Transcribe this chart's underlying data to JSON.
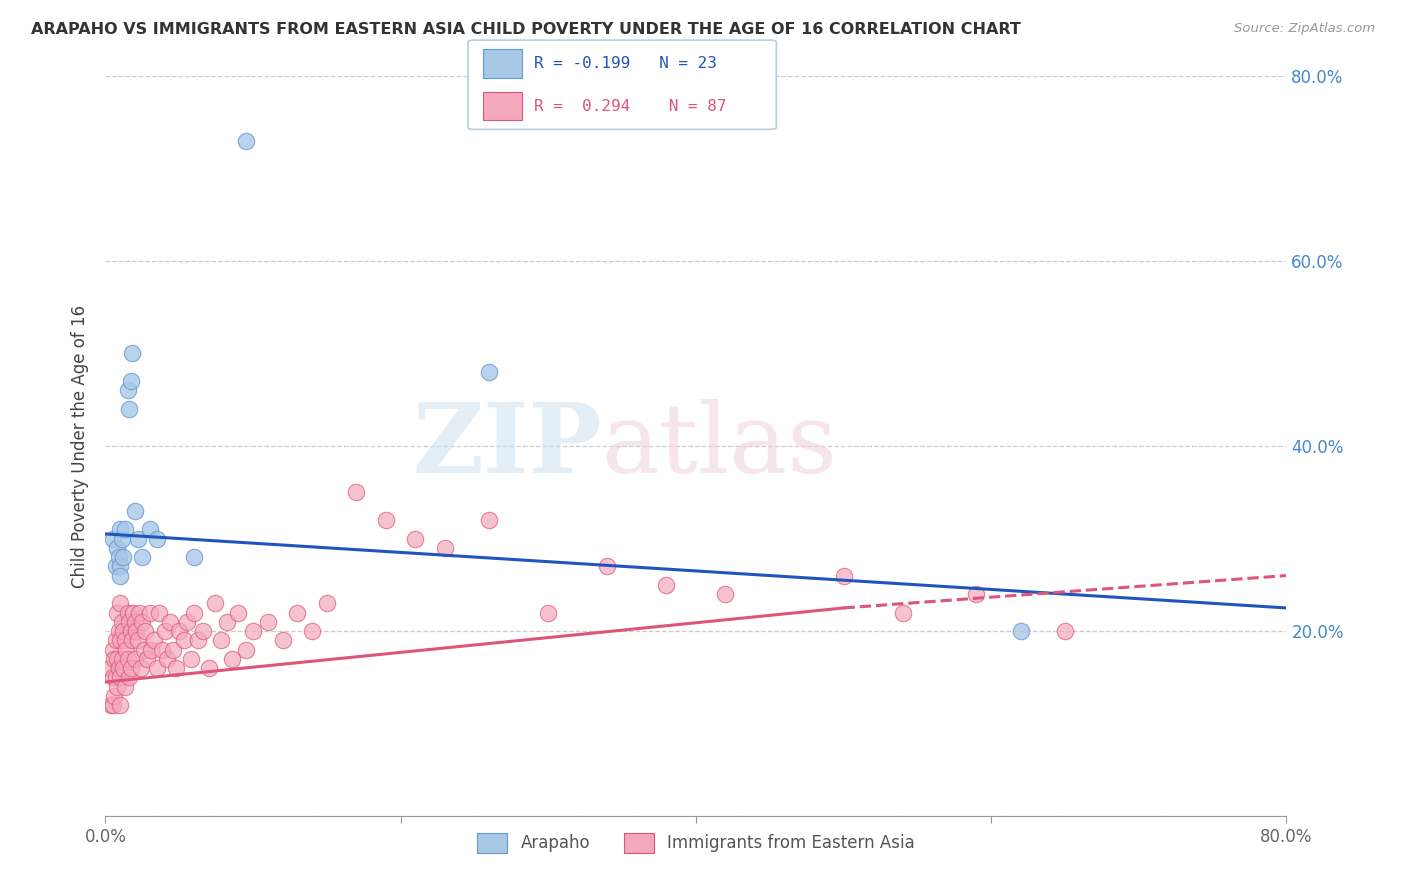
{
  "title": "ARAPAHO VS IMMIGRANTS FROM EASTERN ASIA CHILD POVERTY UNDER THE AGE OF 16 CORRELATION CHART",
  "source": "Source: ZipAtlas.com",
  "ylabel": "Child Poverty Under the Age of 16",
  "xlim": [
    0.0,
    0.8
  ],
  "ylim": [
    0.0,
    0.8
  ],
  "arapaho_color": "#a8c8e8",
  "eastern_asia_color": "#f4a8bc",
  "trendline_blue": "#2255bb",
  "trendline_pink": "#dd5577",
  "legend_r_blue": "-0.199",
  "legend_n_blue": "23",
  "legend_r_pink": "0.294",
  "legend_n_pink": "87",
  "arapaho_x": [
    0.005,
    0.007,
    0.008,
    0.009,
    0.01,
    0.01,
    0.01,
    0.011,
    0.012,
    0.013,
    0.015,
    0.016,
    0.017,
    0.018,
    0.02,
    0.022,
    0.025,
    0.03,
    0.035,
    0.06,
    0.095,
    0.26,
    0.62
  ],
  "arapaho_y": [
    0.3,
    0.27,
    0.29,
    0.28,
    0.31,
    0.27,
    0.26,
    0.3,
    0.28,
    0.31,
    0.46,
    0.44,
    0.47,
    0.5,
    0.33,
    0.3,
    0.28,
    0.31,
    0.3,
    0.28,
    0.73,
    0.48,
    0.2
  ],
  "eastern_asia_x": [
    0.003,
    0.004,
    0.005,
    0.005,
    0.005,
    0.006,
    0.006,
    0.007,
    0.007,
    0.008,
    0.008,
    0.008,
    0.009,
    0.009,
    0.01,
    0.01,
    0.01,
    0.01,
    0.011,
    0.011,
    0.012,
    0.012,
    0.013,
    0.013,
    0.014,
    0.015,
    0.015,
    0.016,
    0.016,
    0.017,
    0.017,
    0.018,
    0.019,
    0.02,
    0.02,
    0.021,
    0.022,
    0.023,
    0.024,
    0.025,
    0.026,
    0.027,
    0.028,
    0.03,
    0.031,
    0.033,
    0.035,
    0.036,
    0.038,
    0.04,
    0.042,
    0.044,
    0.046,
    0.048,
    0.05,
    0.053,
    0.055,
    0.058,
    0.06,
    0.063,
    0.066,
    0.07,
    0.074,
    0.078,
    0.082,
    0.086,
    0.09,
    0.095,
    0.1,
    0.11,
    0.12,
    0.13,
    0.14,
    0.15,
    0.17,
    0.19,
    0.21,
    0.23,
    0.26,
    0.3,
    0.34,
    0.38,
    0.42,
    0.5,
    0.54,
    0.59,
    0.65
  ],
  "eastern_asia_y": [
    0.16,
    0.12,
    0.18,
    0.15,
    0.12,
    0.17,
    0.13,
    0.19,
    0.15,
    0.22,
    0.17,
    0.14,
    0.2,
    0.16,
    0.23,
    0.19,
    0.15,
    0.12,
    0.21,
    0.17,
    0.2,
    0.16,
    0.19,
    0.14,
    0.18,
    0.22,
    0.17,
    0.21,
    0.15,
    0.2,
    0.16,
    0.19,
    0.22,
    0.21,
    0.17,
    0.2,
    0.19,
    0.22,
    0.16,
    0.21,
    0.18,
    0.2,
    0.17,
    0.22,
    0.18,
    0.19,
    0.16,
    0.22,
    0.18,
    0.2,
    0.17,
    0.21,
    0.18,
    0.16,
    0.2,
    0.19,
    0.21,
    0.17,
    0.22,
    0.19,
    0.2,
    0.16,
    0.23,
    0.19,
    0.21,
    0.17,
    0.22,
    0.18,
    0.2,
    0.21,
    0.19,
    0.22,
    0.2,
    0.23,
    0.35,
    0.32,
    0.3,
    0.29,
    0.32,
    0.22,
    0.27,
    0.25,
    0.24,
    0.26,
    0.22,
    0.24,
    0.2
  ],
  "blue_trendline_start_y": 0.305,
  "blue_trendline_end_y": 0.225,
  "pink_trendline_start_y": 0.145,
  "pink_trendline_end_solid_x": 0.5,
  "pink_trendline_end_solid_y": 0.225,
  "pink_trendline_end_dashed_x": 0.8,
  "pink_trendline_end_dashed_y": 0.26
}
